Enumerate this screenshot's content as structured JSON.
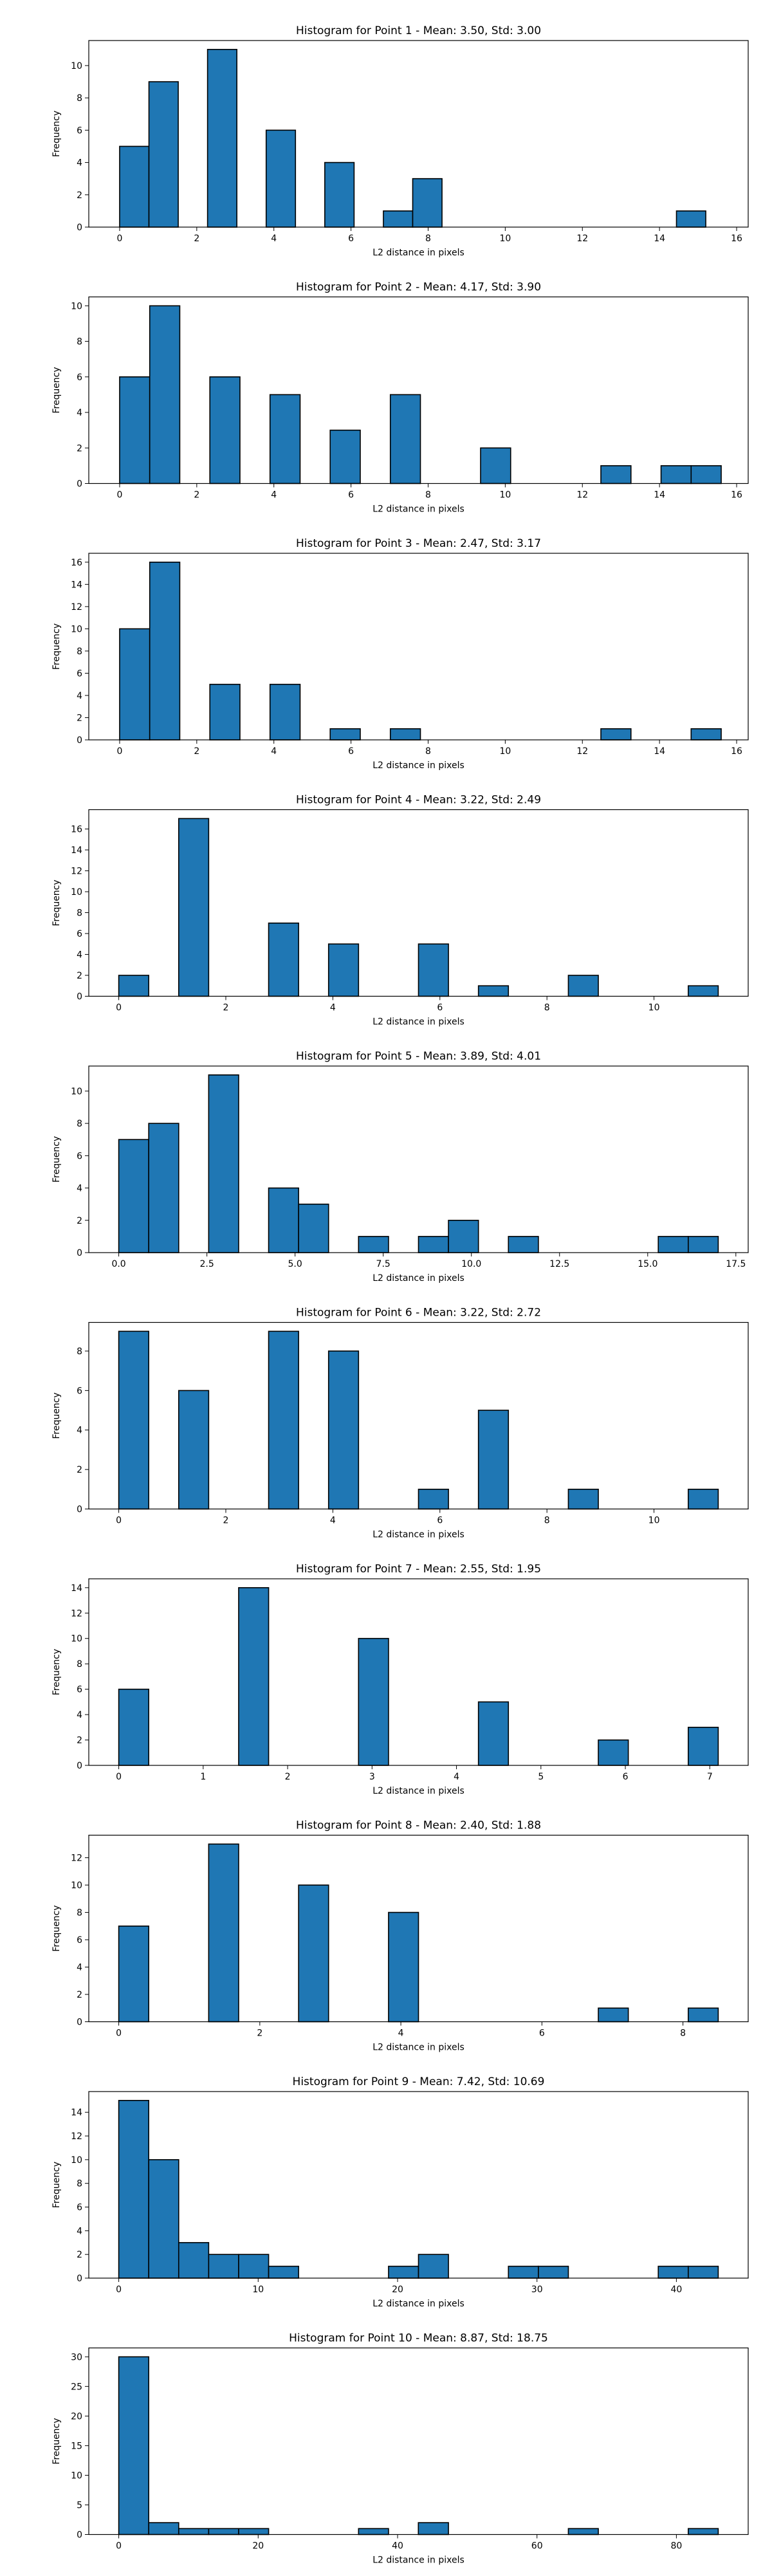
{
  "chart_data": [
    {
      "type": "bar",
      "title": "Histogram for Point 1 - Mean: 3.50, Std: 3.00",
      "xlabel": "L2 distance in pixels",
      "ylabel": "Frequency",
      "xlim": [
        -0.8,
        16.3
      ],
      "ylim": [
        0,
        11.55
      ],
      "xticks": [
        0,
        2,
        4,
        6,
        8,
        10,
        12,
        14,
        16
      ],
      "yticks": [
        0,
        2,
        4,
        6,
        8,
        10
      ],
      "bins": [
        {
          "x0": 0.0,
          "x1": 0.76,
          "y": 5
        },
        {
          "x0": 0.76,
          "x1": 1.52,
          "y": 9
        },
        {
          "x0": 2.28,
          "x1": 3.04,
          "y": 11
        },
        {
          "x0": 3.8,
          "x1": 4.56,
          "y": 6
        },
        {
          "x0": 5.32,
          "x1": 6.08,
          "y": 4
        },
        {
          "x0": 6.84,
          "x1": 7.6,
          "y": 1
        },
        {
          "x0": 7.6,
          "x1": 8.36,
          "y": 3
        },
        {
          "x0": 14.44,
          "x1": 15.2,
          "y": 1
        }
      ]
    },
    {
      "type": "bar",
      "title": "Histogram for Point 2 - Mean: 4.17, Std: 3.90",
      "xlabel": "L2 distance in pixels",
      "ylabel": "Frequency",
      "xlim": [
        -0.8,
        16.3
      ],
      "ylim": [
        0,
        10.5
      ],
      "xticks": [
        0,
        2,
        4,
        6,
        8,
        10,
        12,
        14,
        16
      ],
      "yticks": [
        0,
        2,
        4,
        6,
        8,
        10
      ],
      "bins": [
        {
          "x0": 0.0,
          "x1": 0.78,
          "y": 6
        },
        {
          "x0": 0.78,
          "x1": 1.56,
          "y": 10
        },
        {
          "x0": 2.34,
          "x1": 3.12,
          "y": 6
        },
        {
          "x0": 3.9,
          "x1": 4.68,
          "y": 5
        },
        {
          "x0": 5.46,
          "x1": 6.24,
          "y": 3
        },
        {
          "x0": 7.02,
          "x1": 7.8,
          "y": 5
        },
        {
          "x0": 9.36,
          "x1": 10.14,
          "y": 2
        },
        {
          "x0": 12.48,
          "x1": 13.26,
          "y": 1
        },
        {
          "x0": 14.04,
          "x1": 14.82,
          "y": 1
        },
        {
          "x0": 14.82,
          "x1": 15.6,
          "y": 1
        }
      ]
    },
    {
      "type": "bar",
      "title": "Histogram for Point 3 - Mean: 2.47, Std: 3.17",
      "xlabel": "L2 distance in pixels",
      "ylabel": "Frequency",
      "xlim": [
        -0.8,
        16.3
      ],
      "ylim": [
        0,
        16.8
      ],
      "xticks": [
        0,
        2,
        4,
        6,
        8,
        10,
        12,
        14,
        16
      ],
      "yticks": [
        0,
        2,
        4,
        6,
        8,
        10,
        12,
        14,
        16
      ],
      "bins": [
        {
          "x0": 0.0,
          "x1": 0.78,
          "y": 10
        },
        {
          "x0": 0.78,
          "x1": 1.56,
          "y": 16
        },
        {
          "x0": 2.34,
          "x1": 3.12,
          "y": 5
        },
        {
          "x0": 3.9,
          "x1": 4.68,
          "y": 5
        },
        {
          "x0": 5.46,
          "x1": 6.24,
          "y": 1
        },
        {
          "x0": 7.02,
          "x1": 7.8,
          "y": 1
        },
        {
          "x0": 12.48,
          "x1": 13.26,
          "y": 1
        },
        {
          "x0": 14.82,
          "x1": 15.6,
          "y": 1
        }
      ]
    },
    {
      "type": "bar",
      "title": "Histogram for Point 4 - Mean: 3.22, Std: 2.49",
      "xlabel": "L2 distance in pixels",
      "ylabel": "Frequency",
      "xlim": [
        -0.56,
        11.76
      ],
      "ylim": [
        0,
        17.85
      ],
      "xticks": [
        0,
        2,
        4,
        6,
        8,
        10
      ],
      "yticks": [
        0,
        2,
        4,
        6,
        8,
        10,
        12,
        14,
        16
      ],
      "bins": [
        {
          "x0": 0.0,
          "x1": 0.56,
          "y": 2
        },
        {
          "x0": 1.12,
          "x1": 1.68,
          "y": 17
        },
        {
          "x0": 2.8,
          "x1": 3.36,
          "y": 7
        },
        {
          "x0": 3.92,
          "x1": 4.48,
          "y": 5
        },
        {
          "x0": 5.6,
          "x1": 6.16,
          "y": 5
        },
        {
          "x0": 6.72,
          "x1": 7.28,
          "y": 1
        },
        {
          "x0": 8.4,
          "x1": 8.96,
          "y": 2
        },
        {
          "x0": 10.64,
          "x1": 11.2,
          "y": 1
        }
      ]
    },
    {
      "type": "bar",
      "title": "Histogram for Point 5 - Mean: 3.89, Std: 4.01",
      "xlabel": "L2 distance in pixels",
      "ylabel": "Frequency",
      "xlim": [
        -0.85,
        17.85
      ],
      "ylim": [
        0,
        11.55
      ],
      "xticks": [
        0.0,
        2.5,
        5.0,
        7.5,
        10.0,
        12.5,
        15.0,
        17.5
      ],
      "xtick_labels": [
        "0.0",
        "2.5",
        "5.0",
        "7.5",
        "10.0",
        "12.5",
        "15.0",
        "17.5"
      ],
      "yticks": [
        0,
        2,
        4,
        6,
        8,
        10
      ],
      "bins": [
        {
          "x0": 0.0,
          "x1": 0.85,
          "y": 7
        },
        {
          "x0": 0.85,
          "x1": 1.7,
          "y": 8
        },
        {
          "x0": 2.55,
          "x1": 3.4,
          "y": 11
        },
        {
          "x0": 4.25,
          "x1": 5.1,
          "y": 4
        },
        {
          "x0": 5.1,
          "x1": 5.95,
          "y": 3
        },
        {
          "x0": 6.8,
          "x1": 7.65,
          "y": 1
        },
        {
          "x0": 8.5,
          "x1": 9.35,
          "y": 1
        },
        {
          "x0": 9.35,
          "x1": 10.2,
          "y": 2
        },
        {
          "x0": 11.05,
          "x1": 11.9,
          "y": 1
        },
        {
          "x0": 15.3,
          "x1": 16.15,
          "y": 1
        },
        {
          "x0": 16.15,
          "x1": 17.0,
          "y": 1
        }
      ]
    },
    {
      "type": "bar",
      "title": "Histogram for Point 6 - Mean: 3.22, Std: 2.72",
      "xlabel": "L2 distance in pixels",
      "ylabel": "Frequency",
      "xlim": [
        -0.56,
        11.76
      ],
      "ylim": [
        0,
        9.45
      ],
      "xticks": [
        0,
        2,
        4,
        6,
        8,
        10
      ],
      "yticks": [
        0,
        2,
        4,
        6,
        8
      ],
      "bins": [
        {
          "x0": 0.0,
          "x1": 0.56,
          "y": 9
        },
        {
          "x0": 1.12,
          "x1": 1.68,
          "y": 6
        },
        {
          "x0": 2.8,
          "x1": 3.36,
          "y": 9
        },
        {
          "x0": 3.92,
          "x1": 4.48,
          "y": 8
        },
        {
          "x0": 5.6,
          "x1": 6.16,
          "y": 1
        },
        {
          "x0": 6.72,
          "x1": 7.28,
          "y": 5
        },
        {
          "x0": 8.4,
          "x1": 8.96,
          "y": 1
        },
        {
          "x0": 10.64,
          "x1": 11.2,
          "y": 1
        }
      ]
    },
    {
      "type": "bar",
      "title": "Histogram for Point 7 - Mean: 2.55, Std: 1.95",
      "xlabel": "L2 distance in pixels",
      "ylabel": "Frequency",
      "xlim": [
        -0.355,
        7.455
      ],
      "ylim": [
        0,
        14.7
      ],
      "xticks": [
        0,
        1,
        2,
        3,
        4,
        5,
        6,
        7
      ],
      "yticks": [
        0,
        2,
        4,
        6,
        8,
        10,
        12,
        14
      ],
      "bins": [
        {
          "x0": 0.0,
          "x1": 0.355,
          "y": 6
        },
        {
          "x0": 1.42,
          "x1": 1.775,
          "y": 14
        },
        {
          "x0": 2.84,
          "x1": 3.195,
          "y": 10
        },
        {
          "x0": 4.26,
          "x1": 4.615,
          "y": 5
        },
        {
          "x0": 5.68,
          "x1": 6.035,
          "y": 2
        },
        {
          "x0": 6.745,
          "x1": 7.1,
          "y": 3
        }
      ]
    },
    {
      "type": "bar",
      "title": "Histogram for Point 8 - Mean: 2.40, Std: 1.88",
      "xlabel": "L2 distance in pixels",
      "ylabel": "Frequency",
      "xlim": [
        -0.425,
        8.925
      ],
      "ylim": [
        0,
        13.65
      ],
      "xticks": [
        0,
        2,
        4,
        6,
        8
      ],
      "yticks": [
        0,
        2,
        4,
        6,
        8,
        10,
        12
      ],
      "bins": [
        {
          "x0": 0.0,
          "x1": 0.425,
          "y": 7
        },
        {
          "x0": 1.275,
          "x1": 1.7,
          "y": 13
        },
        {
          "x0": 2.55,
          "x1": 2.975,
          "y": 10
        },
        {
          "x0": 3.825,
          "x1": 4.25,
          "y": 8
        },
        {
          "x0": 6.8,
          "x1": 7.225,
          "y": 1
        },
        {
          "x0": 8.075,
          "x1": 8.5,
          "y": 1
        }
      ]
    },
    {
      "type": "bar",
      "title": "Histogram for Point 9 - Mean: 7.42, Std: 10.69",
      "xlabel": "L2 distance in pixels",
      "ylabel": "Frequency",
      "xlim": [
        -2.15,
        45.15
      ],
      "ylim": [
        0,
        15.75
      ],
      "xticks": [
        0,
        10,
        20,
        30,
        40
      ],
      "yticks": [
        0,
        2,
        4,
        6,
        8,
        10,
        12,
        14
      ],
      "bins": [
        {
          "x0": 0.0,
          "x1": 2.15,
          "y": 15
        },
        {
          "x0": 2.15,
          "x1": 4.3,
          "y": 10
        },
        {
          "x0": 4.3,
          "x1": 6.45,
          "y": 3
        },
        {
          "x0": 6.45,
          "x1": 8.6,
          "y": 2
        },
        {
          "x0": 8.6,
          "x1": 10.75,
          "y": 2
        },
        {
          "x0": 10.75,
          "x1": 12.9,
          "y": 1
        },
        {
          "x0": 19.35,
          "x1": 21.5,
          "y": 1
        },
        {
          "x0": 21.5,
          "x1": 23.65,
          "y": 2
        },
        {
          "x0": 27.95,
          "x1": 30.1,
          "y": 1
        },
        {
          "x0": 30.1,
          "x1": 32.25,
          "y": 1
        },
        {
          "x0": 38.7,
          "x1": 40.85,
          "y": 1
        },
        {
          "x0": 40.85,
          "x1": 43.0,
          "y": 1
        }
      ]
    },
    {
      "type": "bar",
      "title": "Histogram for Point 10 - Mean: 8.87, Std: 18.75",
      "xlabel": "L2 distance in pixels",
      "ylabel": "Frequency",
      "xlim": [
        -4.3,
        90.3
      ],
      "ylim": [
        0,
        31.5
      ],
      "xticks": [
        0,
        20,
        40,
        60,
        80
      ],
      "yticks": [
        0,
        5,
        10,
        15,
        20,
        25,
        30
      ],
      "bins": [
        {
          "x0": 0.0,
          "x1": 4.3,
          "y": 30
        },
        {
          "x0": 4.3,
          "x1": 8.6,
          "y": 2
        },
        {
          "x0": 8.6,
          "x1": 12.9,
          "y": 1
        },
        {
          "x0": 12.9,
          "x1": 17.2,
          "y": 1
        },
        {
          "x0": 17.2,
          "x1": 21.5,
          "y": 1
        },
        {
          "x0": 34.4,
          "x1": 38.7,
          "y": 1
        },
        {
          "x0": 42.98,
          "x1": 47.3,
          "y": 2
        },
        {
          "x0": 64.5,
          "x1": 68.8,
          "y": 1
        },
        {
          "x0": 81.7,
          "x1": 86.0,
          "y": 1
        }
      ]
    }
  ],
  "style": {
    "bar_fill": "#1f77b4",
    "bar_edge": "#000000",
    "axes_color": "#000000",
    "background": "#ffffff"
  }
}
